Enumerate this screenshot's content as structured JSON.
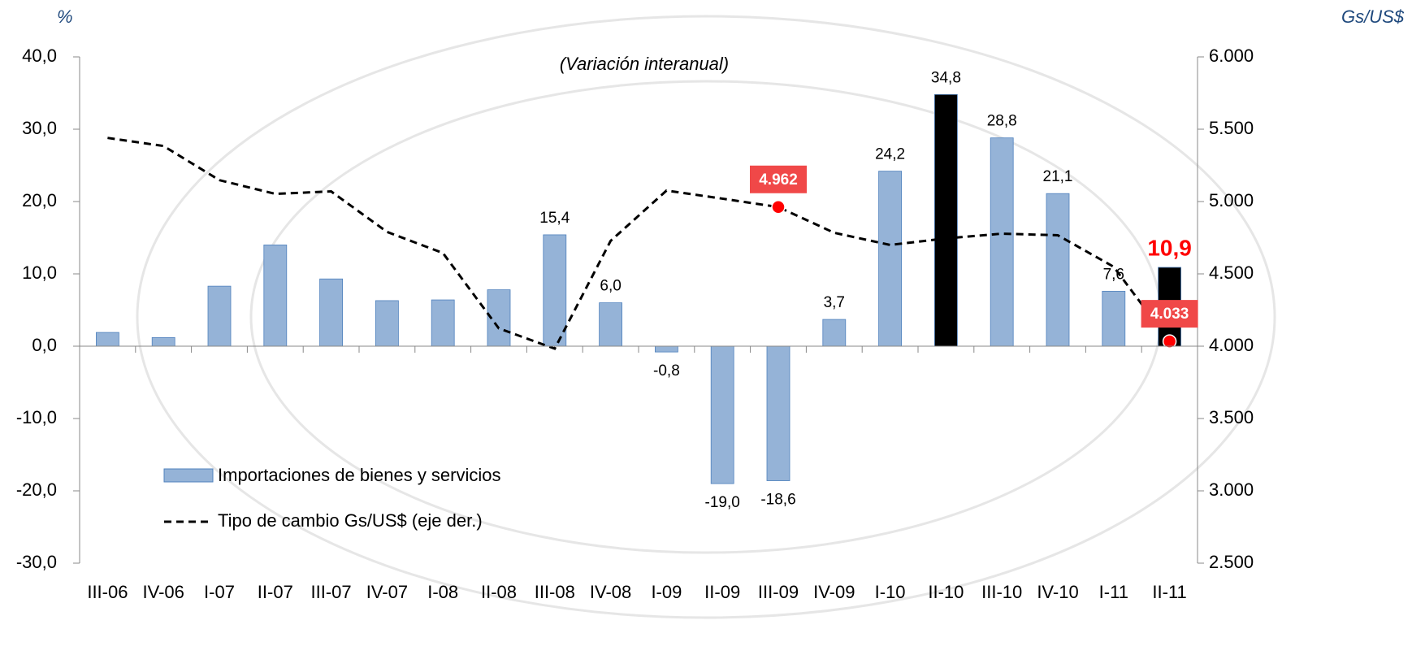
{
  "chart_data": {
    "type": "bar_line",
    "subtitle": "(Variación interanual)",
    "y_unit": "%",
    "y2_unit": "Gs/US$",
    "categories": [
      "III-06",
      "IV-06",
      "I-07",
      "II-07",
      "III-07",
      "IV-07",
      "I-08",
      "II-08",
      "III-08",
      "IV-08",
      "I-09",
      "II-09",
      "III-09",
      "IV-09",
      "I-10",
      "II-10",
      "III-10",
      "IV-10",
      "I-11",
      "II-11"
    ],
    "series": [
      {
        "name": "Importaciones de bienes y servicios",
        "type": "bar",
        "colors": [
          "#95b3d7",
          "#95b3d7",
          "#95b3d7",
          "#95b3d7",
          "#95b3d7",
          "#95b3d7",
          "#95b3d7",
          "#95b3d7",
          "#95b3d7",
          "#95b3d7",
          "#95b3d7",
          "#95b3d7",
          "#95b3d7",
          "#95b3d7",
          "#95b3d7",
          "#000000",
          "#95b3d7",
          "#95b3d7",
          "#95b3d7",
          "#000000"
        ],
        "color": "#95b3d7",
        "values": [
          1.9,
          1.2,
          8.3,
          14.0,
          9.3,
          6.3,
          6.4,
          7.8,
          15.4,
          6.0,
          -0.8,
          -19.0,
          -18.6,
          3.7,
          24.2,
          34.8,
          28.8,
          21.1,
          7.6,
          10.9
        ],
        "value_labels": [
          null,
          null,
          null,
          null,
          null,
          null,
          null,
          null,
          "15,4",
          "6,0",
          "-0,8",
          "-19,0",
          "-18,6",
          "3,7",
          "24,2",
          "34,8",
          "28,8",
          "21,1",
          "7,6",
          "10,9"
        ]
      },
      {
        "name": "Tipo de cambio Gs/US$ (eje der.)",
        "type": "line",
        "axis": "y2",
        "color": "#000000",
        "dashed": true,
        "marker_color": "#ff0000",
        "values": [
          5440,
          5384,
          5148,
          5053,
          5070,
          4790,
          4644,
          4123,
          3983,
          4728,
          5076,
          5020,
          4962,
          4784,
          4700,
          4745,
          4778,
          4767,
          4549,
          4033
        ],
        "value_labels": [
          null,
          null,
          null,
          null,
          null,
          null,
          null,
          null,
          null,
          null,
          null,
          null,
          "4.962",
          null,
          null,
          null,
          null,
          null,
          null,
          "4.033"
        ]
      }
    ],
    "ylim": [
      -30,
      40
    ],
    "yticks": [
      {
        "value": -30,
        "label": "-30,0"
      },
      {
        "value": -20,
        "label": "-20,0"
      },
      {
        "value": -10,
        "label": "-10,0"
      },
      {
        "value": 0,
        "label": "0,0"
      },
      {
        "value": 10,
        "label": "10,0"
      },
      {
        "value": 20,
        "label": "20,0"
      },
      {
        "value": 30,
        "label": "30,0"
      },
      {
        "value": 40,
        "label": "40,0"
      }
    ],
    "y2lim": [
      2500,
      6000
    ],
    "y2ticks": [
      {
        "value": 2500,
        "label": "2.500"
      },
      {
        "value": 3000,
        "label": "3.000"
      },
      {
        "value": 3500,
        "label": "3.500"
      },
      {
        "value": 4000,
        "label": "4.000"
      },
      {
        "value": 4500,
        "label": "4.500"
      },
      {
        "value": 5000,
        "label": "5.000"
      },
      {
        "value": 5500,
        "label": "5.500"
      },
      {
        "value": 6000,
        "label": "6.000"
      }
    ],
    "grid": false,
    "legend": "lower left"
  }
}
